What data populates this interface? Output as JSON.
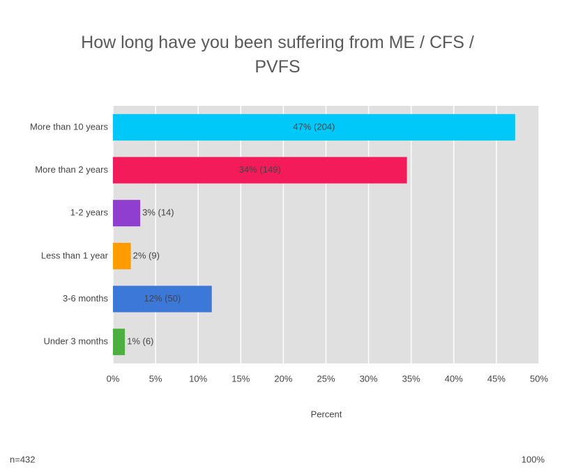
{
  "chart_data": {
    "type": "hbar",
    "title": "How long have you been suffering from ME / CFS / PVFS",
    "categories": [
      "More than 10 years",
      "More than 2 years",
      "1-2 years",
      "Less than 1 year",
      "3-6 months",
      "Under 3 months"
    ],
    "values": [
      47.2,
      34.5,
      3.2,
      2.1,
      11.6,
      1.4
    ],
    "value_labels": [
      "47% (204)",
      "34% (149)",
      "3% (14)",
      "2% (9)",
      "12% (50)",
      "1% (6)"
    ],
    "colors": [
      "#00c8f8",
      "#f41b5b",
      "#8e3fd0",
      "#ff9c00",
      "#3c78d8",
      "#4caf3f"
    ],
    "xlim": [
      0,
      50
    ],
    "xticks": [
      {
        "value": 0,
        "label": "0%"
      },
      {
        "value": 5,
        "label": "5%"
      },
      {
        "value": 10,
        "label": "10%"
      },
      {
        "value": 15,
        "label": "15%"
      },
      {
        "value": 20,
        "label": "20%"
      },
      {
        "value": 25,
        "label": "25%"
      },
      {
        "value": 30,
        "label": "30%"
      },
      {
        "value": 35,
        "label": "35%"
      },
      {
        "value": 40,
        "label": "40%"
      },
      {
        "value": 45,
        "label": "45%"
      },
      {
        "value": 50,
        "label": "50%"
      }
    ],
    "xlabel": "Percent",
    "grid": true,
    "footnote_left": "n=432",
    "footnote_right": "100%"
  }
}
